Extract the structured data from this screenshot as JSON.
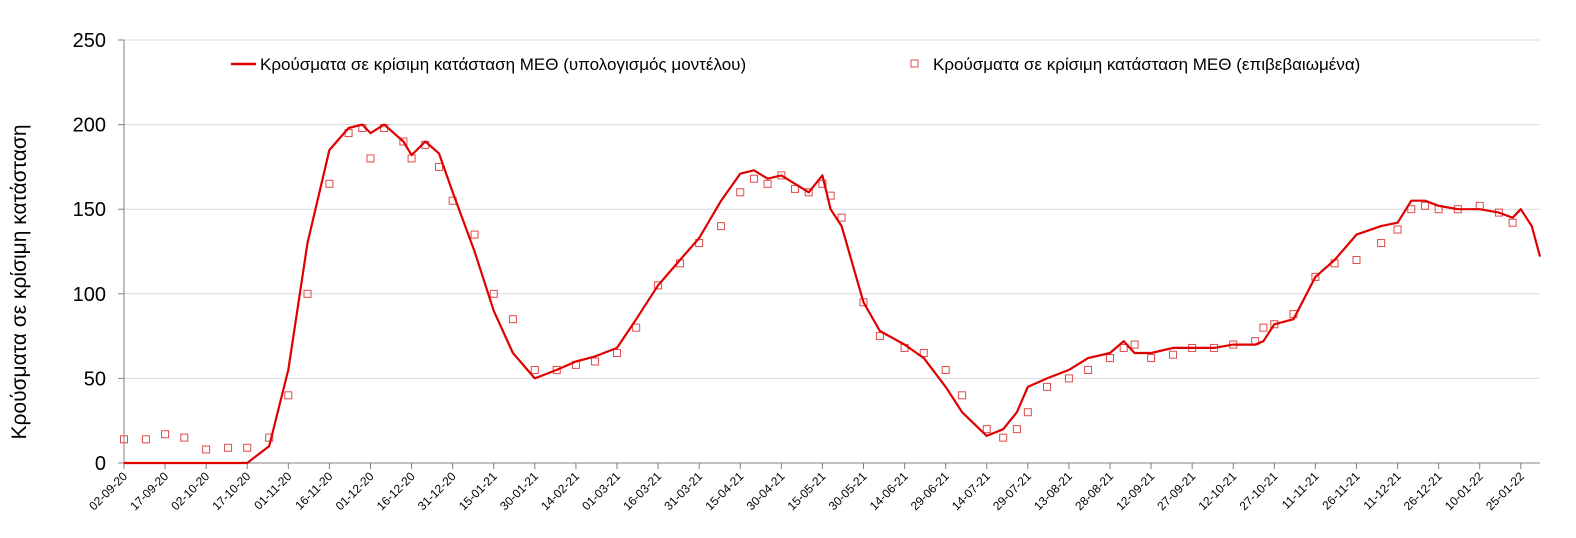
{
  "chart_data": {
    "type": "line",
    "title": "",
    "xlabel": "",
    "ylabel": "Κρούσματα σε κρίσιμη κατάσταση",
    "ylim": [
      0,
      250
    ],
    "yticks": [
      0,
      50,
      100,
      150,
      200,
      250
    ],
    "grid": "horizontal",
    "legend_position": "top",
    "colors": {
      "model": "#e00000",
      "confirmed": "#e04a4a"
    },
    "x_ticks": [
      "02-09-20",
      "17-09-20",
      "02-10-20",
      "17-10-20",
      "01-11-20",
      "16-11-20",
      "01-12-20",
      "16-12-20",
      "31-12-20",
      "15-01-21",
      "30-01-21",
      "14-02-21",
      "01-03-21",
      "16-03-21",
      "31-03-21",
      "15-04-21",
      "30-04-21",
      "15-05-21",
      "30-05-21",
      "14-06-21",
      "29-06-21",
      "14-07-21",
      "29-07-21",
      "13-08-21",
      "28-08-21",
      "12-09-21",
      "27-09-21",
      "12-10-21",
      "27-10-21",
      "11-11-21",
      "26-11-21",
      "11-12-21",
      "26-12-21",
      "10-01-22",
      "25-01-22"
    ],
    "series": [
      {
        "name": "Κρούσματα σε κρίσιμη κατάσταση ΜΕΘ (υπολογισμός μοντέλου)",
        "kind": "line",
        "x": [
          "02-09-20",
          "17-09-20",
          "02-10-20",
          "17-10-20",
          "25-10-20",
          "01-11-20",
          "08-11-20",
          "16-11-20",
          "23-11-20",
          "28-11-20",
          "01-12-20",
          "06-12-20",
          "13-12-20",
          "16-12-20",
          "21-12-20",
          "26-12-20",
          "31-12-20",
          "08-01-21",
          "15-01-21",
          "22-01-21",
          "30-01-21",
          "07-02-21",
          "14-02-21",
          "21-02-21",
          "01-03-21",
          "08-03-21",
          "16-03-21",
          "24-03-21",
          "31-03-21",
          "08-04-21",
          "15-04-21",
          "20-04-21",
          "25-04-21",
          "30-04-21",
          "05-05-21",
          "10-05-21",
          "15-05-21",
          "18-05-21",
          "22-05-21",
          "30-05-21",
          "05-06-21",
          "14-06-21",
          "21-06-21",
          "29-06-21",
          "05-07-21",
          "14-07-21",
          "20-07-21",
          "25-07-21",
          "29-07-21",
          "05-08-21",
          "13-08-21",
          "20-08-21",
          "28-08-21",
          "02-09-21",
          "06-09-21",
          "12-09-21",
          "20-09-21",
          "27-09-21",
          "05-10-21",
          "12-10-21",
          "20-10-21",
          "23-10-21",
          "27-10-21",
          "03-11-21",
          "11-11-21",
          "18-11-21",
          "26-11-21",
          "05-12-21",
          "11-12-21",
          "16-12-21",
          "21-12-21",
          "26-12-21",
          "02-01-22",
          "10-01-22",
          "17-01-22",
          "22-01-22",
          "25-01-22",
          "29-01-22",
          "01-02-22"
        ],
        "y": [
          0,
          0,
          0,
          0,
          10,
          55,
          130,
          185,
          198,
          200,
          195,
          200,
          190,
          182,
          190,
          183,
          160,
          125,
          90,
          65,
          50,
          55,
          60,
          63,
          68,
          85,
          105,
          120,
          133,
          155,
          171,
          173,
          168,
          170,
          165,
          160,
          170,
          150,
          140,
          95,
          78,
          70,
          62,
          45,
          30,
          16,
          20,
          30,
          45,
          50,
          55,
          62,
          65,
          72,
          65,
          65,
          68,
          68,
          68,
          70,
          70,
          72,
          82,
          85,
          110,
          120,
          135,
          140,
          142,
          155,
          155,
          152,
          150,
          150,
          148,
          145,
          150,
          140,
          122
        ]
      },
      {
        "name": "Κρούσματα σε κρίσιμη κατάσταση ΜΕΘ (επιβεβαιωμένα)",
        "kind": "markers",
        "x": [
          "02-09-20",
          "10-09-20",
          "17-09-20",
          "24-09-20",
          "02-10-20",
          "10-10-20",
          "17-10-20",
          "25-10-20",
          "01-11-20",
          "08-11-20",
          "16-11-20",
          "23-11-20",
          "28-11-20",
          "01-12-20",
          "06-12-20",
          "13-12-20",
          "16-12-20",
          "21-12-20",
          "26-12-20",
          "31-12-20",
          "08-01-21",
          "15-01-21",
          "22-01-21",
          "30-01-21",
          "07-02-21",
          "14-02-21",
          "21-02-21",
          "01-03-21",
          "08-03-21",
          "16-03-21",
          "24-03-21",
          "31-03-21",
          "08-04-21",
          "15-04-21",
          "20-04-21",
          "25-04-21",
          "30-04-21",
          "05-05-21",
          "10-05-21",
          "15-05-21",
          "18-05-21",
          "22-05-21",
          "30-05-21",
          "05-06-21",
          "14-06-21",
          "21-06-21",
          "29-06-21",
          "05-07-21",
          "14-07-21",
          "20-07-21",
          "25-07-21",
          "29-07-21",
          "05-08-21",
          "13-08-21",
          "20-08-21",
          "28-08-21",
          "02-09-21",
          "06-09-21",
          "12-09-21",
          "20-09-21",
          "27-09-21",
          "05-10-21",
          "12-10-21",
          "20-10-21",
          "23-10-21",
          "27-10-21",
          "03-11-21",
          "11-11-21",
          "18-11-21",
          "26-11-21",
          "05-12-21",
          "11-12-21",
          "16-12-21",
          "21-12-21",
          "26-12-21",
          "02-01-22",
          "10-01-22",
          "17-01-22",
          "22-01-22"
        ],
        "y": [
          14,
          14,
          17,
          15,
          8,
          9,
          9,
          15,
          40,
          100,
          165,
          195,
          198,
          180,
          198,
          190,
          180,
          188,
          175,
          155,
          135,
          100,
          85,
          55,
          55,
          58,
          60,
          65,
          80,
          105,
          118,
          130,
          140,
          160,
          168,
          165,
          170,
          162,
          160,
          165,
          158,
          145,
          95,
          75,
          68,
          65,
          55,
          40,
          20,
          15,
          20,
          30,
          45,
          50,
          55,
          62,
          68,
          70,
          62,
          64,
          68,
          68,
          70,
          72,
          80,
          82,
          88,
          110,
          118,
          120,
          130,
          138,
          150,
          152,
          150,
          150,
          152,
          148,
          142
        ]
      }
    ]
  }
}
